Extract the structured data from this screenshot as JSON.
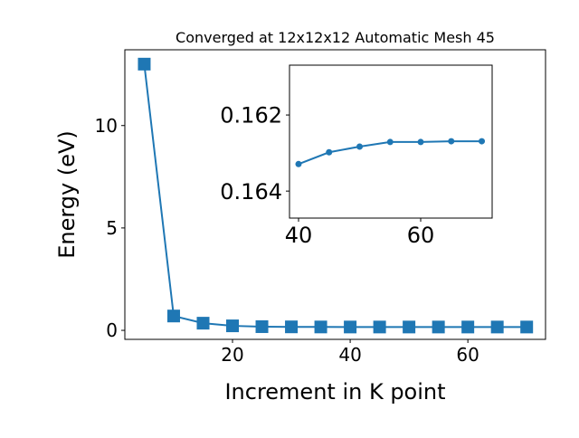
{
  "chart_data": [
    {
      "type": "line",
      "title": "Converged at 12x12x12 Automatic Mesh 45",
      "x_label": "Increment in K point",
      "y_label": "Energy (eV)",
      "x": [
        5,
        10,
        15,
        20,
        25,
        30,
        35,
        40,
        45,
        50,
        55,
        60,
        65,
        70
      ],
      "series": [
        {
          "name": "Energy",
          "color": "#1f77b4",
          "marker": "square",
          "values": [
            13.0,
            0.7,
            0.35,
            0.22,
            0.18,
            0.17,
            0.165,
            0.16329,
            0.16298,
            0.16283,
            0.16271,
            0.16271,
            0.16269,
            0.16269
          ]
        }
      ],
      "xlim": [
        1.7,
        73.2
      ],
      "ylim": [
        -0.44,
        13.7
      ],
      "xticks": [
        20,
        40,
        60
      ],
      "yticks": [
        0,
        5,
        10
      ]
    },
    {
      "type": "line",
      "x": [
        40,
        45,
        50,
        55,
        60,
        65,
        70
      ],
      "series": [
        {
          "name": "Energy",
          "color": "#1f77b4",
          "marker": "circle",
          "values": [
            0.16329,
            0.16298,
            0.16283,
            0.16271,
            0.16271,
            0.16269,
            0.16269
          ]
        }
      ],
      "xlim": [
        38.52,
        71.7
      ],
      "ylim": [
        0.16471,
        0.16069
      ],
      "xticks": [
        40,
        60
      ],
      "yticks": [
        0.162,
        0.164
      ]
    }
  ]
}
